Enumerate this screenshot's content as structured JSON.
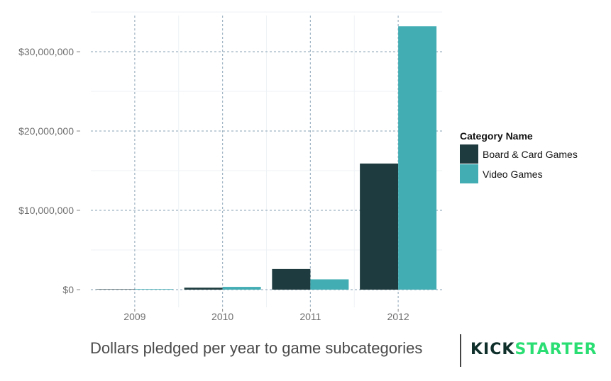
{
  "chart_data": {
    "type": "bar",
    "title": "",
    "xlabel": "",
    "ylabel": "",
    "categories": [
      "2009",
      "2010",
      "2011",
      "2012"
    ],
    "series": [
      {
        "name": "Board & Card Games",
        "color": "#1e3b3f",
        "values": [
          50000,
          250000,
          2600000,
          15900000
        ]
      },
      {
        "name": "Video Games",
        "color": "#43adb4",
        "values": [
          70000,
          350000,
          1300000,
          33200000
        ]
      }
    ],
    "ylim": [
      -1000000,
      35000000
    ],
    "yticks": [
      0,
      10000000,
      20000000,
      30000000
    ],
    "ytick_labels": [
      "$0",
      "$10,000,000",
      "$20,000,000",
      "$30,000,000"
    ],
    "grid": true,
    "legend": {
      "title": "Category Name",
      "position": "right"
    }
  },
  "caption": "Dollars pledged per year to game subcategories",
  "brand": {
    "part1": "KICK",
    "part2": "STARTER",
    "color1": "#0f2f2b",
    "color2": "#2bde73"
  }
}
